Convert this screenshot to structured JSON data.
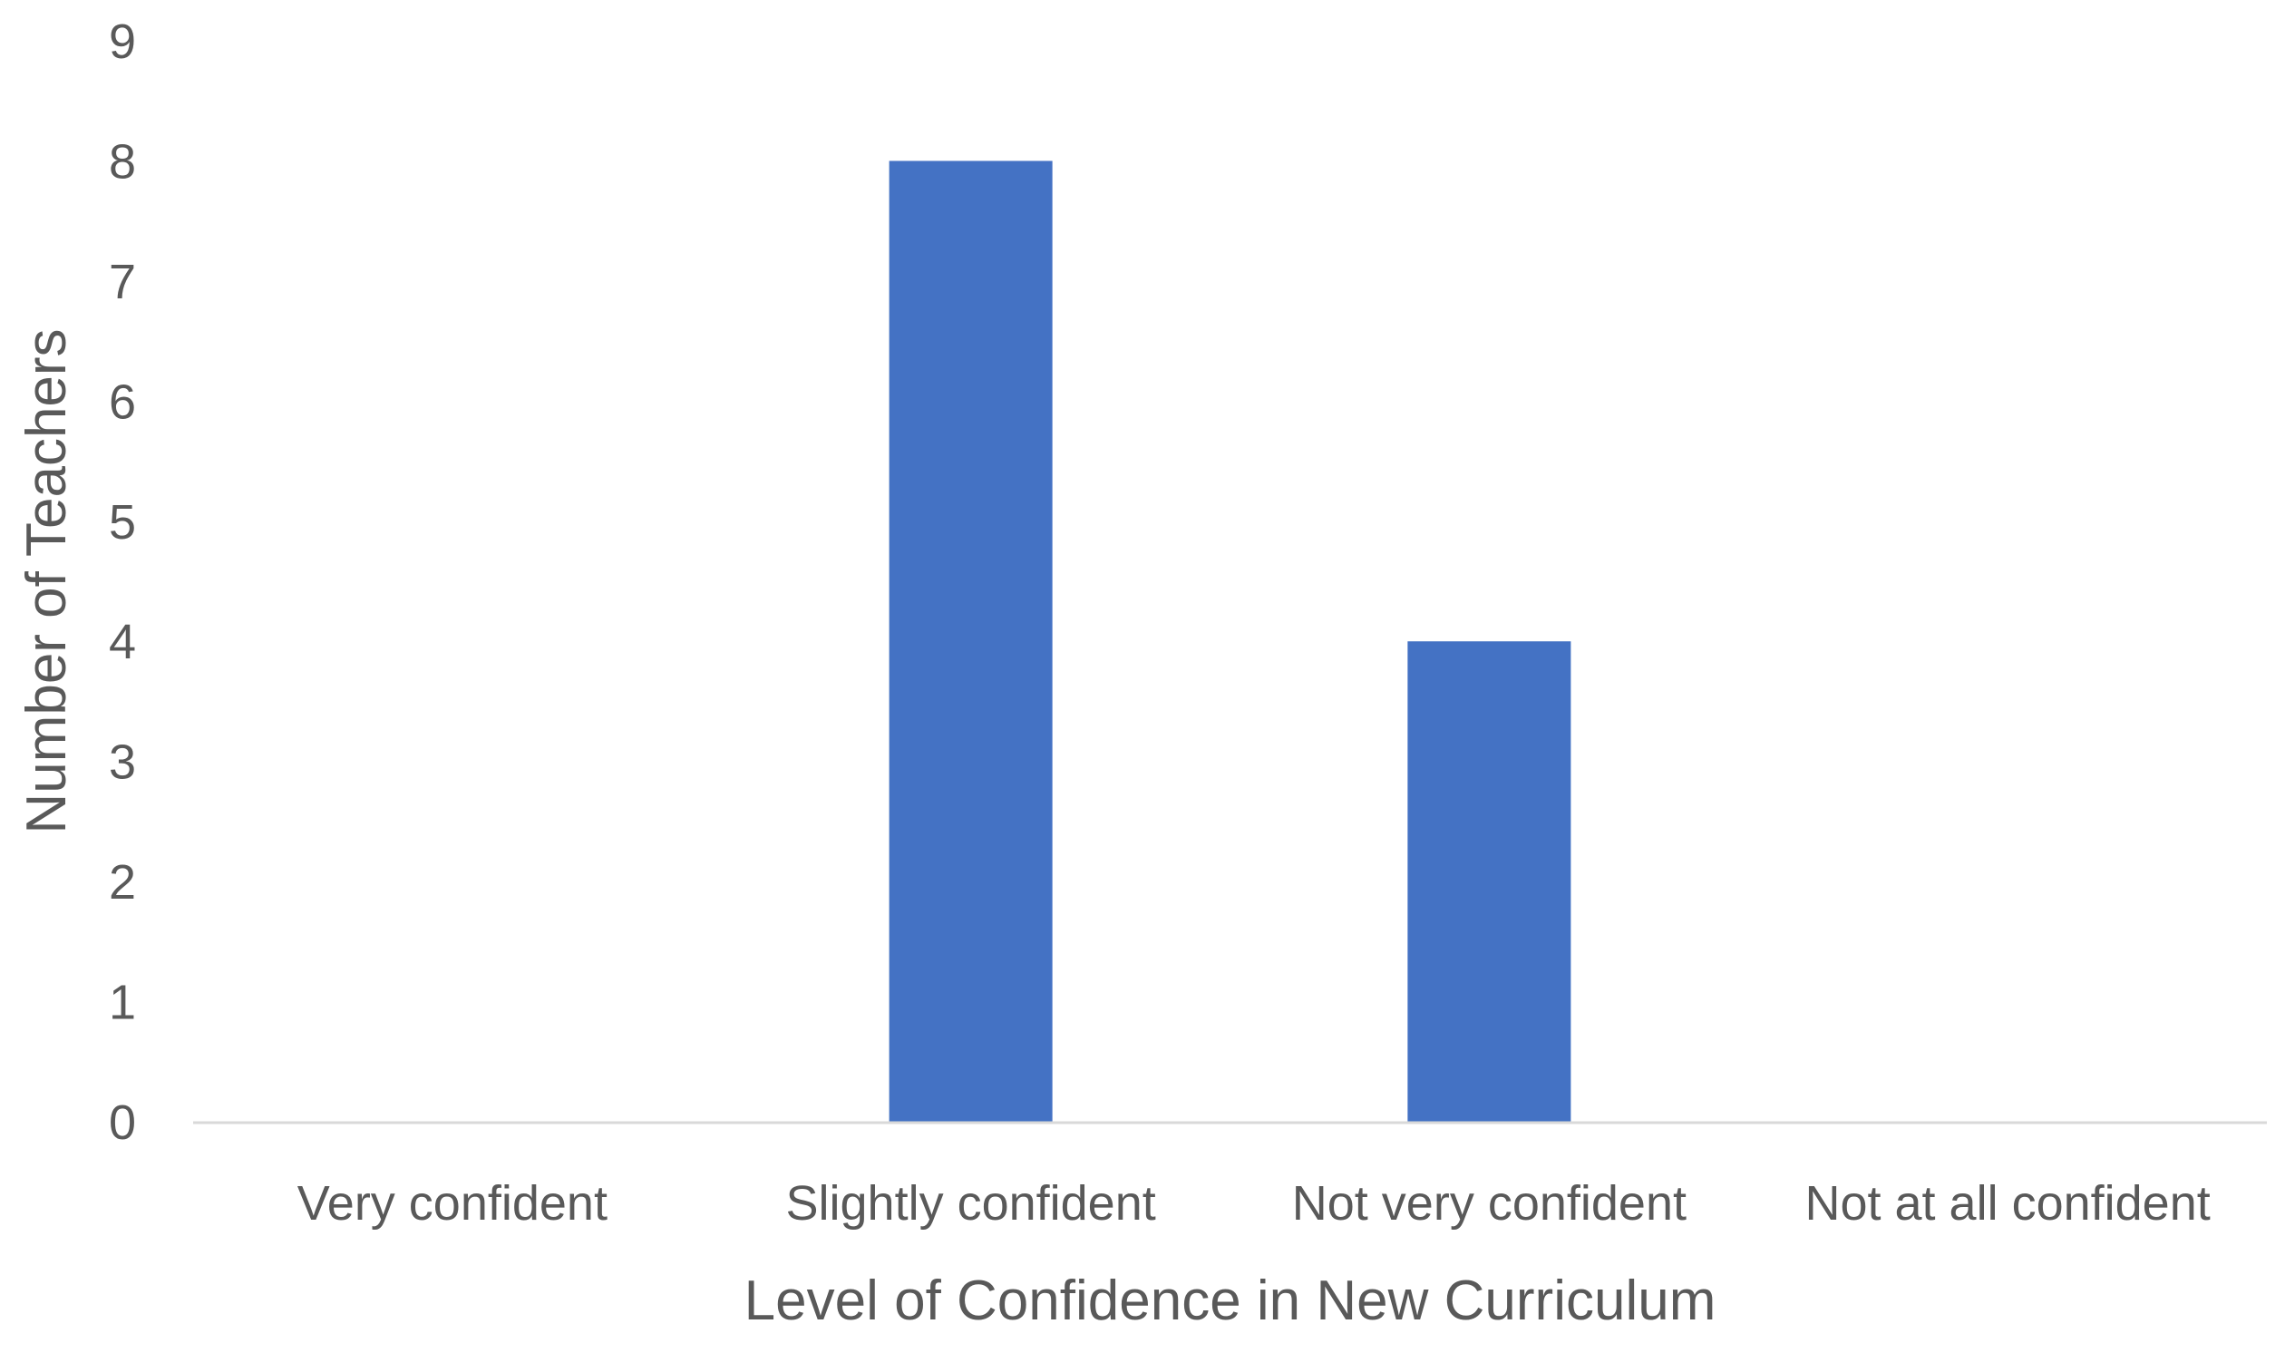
{
  "chart_data": {
    "type": "bar",
    "title": "",
    "xlabel": "Level of Confidence in New Curriculum",
    "ylabel": "Number of Teachers",
    "categories": [
      "Very confident",
      "Slightly confident",
      "Not very confident",
      "Not at all confident"
    ],
    "values": [
      0,
      8,
      4,
      0
    ],
    "ylim": [
      0,
      9
    ],
    "yticks": [
      "0",
      "1",
      "2",
      "3",
      "4",
      "5",
      "6",
      "7",
      "8",
      "9"
    ],
    "grid": false,
    "legend": "none",
    "colors": {
      "bar": "#4472C4",
      "axis_line": "#D9D9D9",
      "text": "#595959"
    }
  }
}
